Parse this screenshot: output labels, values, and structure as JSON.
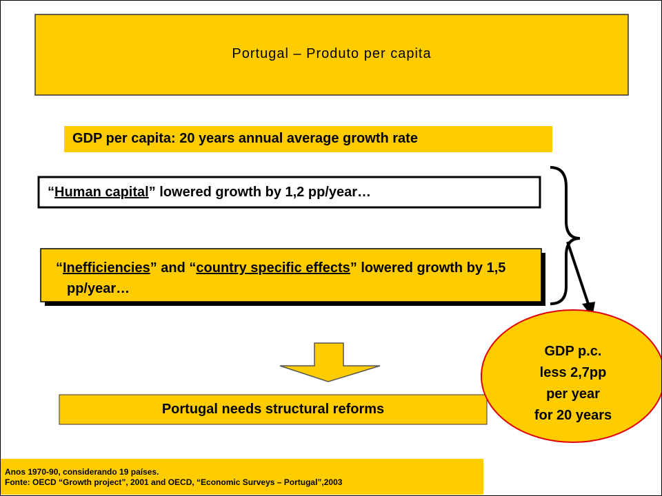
{
  "title": "Portugal – Produto per capita",
  "subtitle": "GDP per capita: 20 years annual average growth rate",
  "box1": [
    "“",
    "Human capital",
    "” lowered growth by 1,2 pp/year…"
  ],
  "box2": [
    "“",
    "Inefficiencies",
    "” and “",
    "country specific effects",
    "” lowered growth by 1,5 pp/year…"
  ],
  "conclusion": "Portugal needs structural reforms",
  "circle": [
    "GDP p.c.",
    "less 2,7pp",
    "per year",
    "for 20 years"
  ],
  "footnote": [
    "Anos 1970-90, considerando 19 países.",
    "Fonte: OECD “Growth project”, 2001 and OECD, “Economic Surveys – Portugal”,2003"
  ]
}
